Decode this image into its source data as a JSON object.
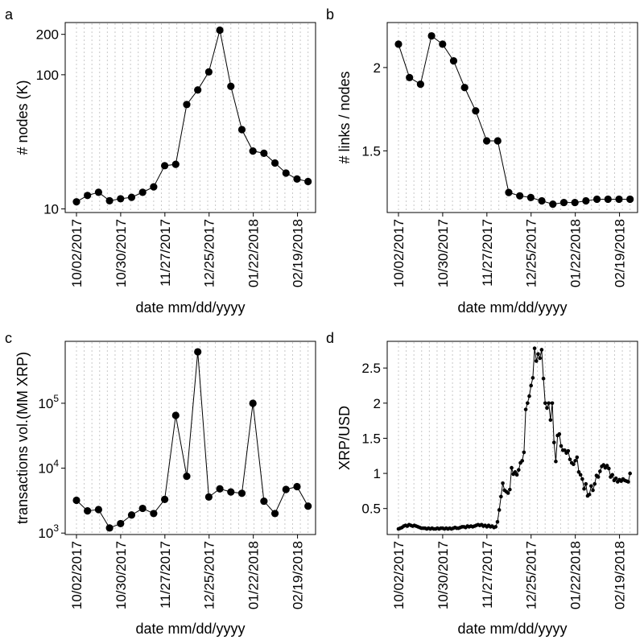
{
  "chart_data": [
    {
      "letter": "a",
      "type": "line",
      "title": "",
      "xlabel": "date mm/dd/yyyy",
      "ylabel": "# nodes (K)",
      "yscale": "log",
      "ylim": [
        9.4,
        245
      ],
      "yticks": [
        10,
        100,
        200
      ],
      "ytick_labels": [
        "10",
        "100",
        "200"
      ],
      "xtick_labels": [
        "10/02/2017",
        "10/30/2017",
        "11/27/2017",
        "12/25/2017",
        "01/22/2018",
        "02/19/2018"
      ],
      "marker": "large",
      "values": [
        11.3,
        12.6,
        13.3,
        11.5,
        11.9,
        12.2,
        13.3,
        14.6,
        21,
        21.5,
        60,
        77,
        105,
        215,
        82,
        39,
        27,
        26,
        22,
        18.5,
        16.7,
        16
      ]
    },
    {
      "letter": "b",
      "type": "line",
      "title": "",
      "xlabel": "date mm/dd/yyyy",
      "ylabel": "# links / nodes",
      "yscale": "linear",
      "ylim": [
        1.13,
        2.27
      ],
      "yticks": [
        1.5,
        2
      ],
      "ytick_labels": [
        "1.5",
        "2"
      ],
      "xtick_labels": [
        "10/02/2017",
        "10/30/2017",
        "11/27/2017",
        "12/25/2017",
        "01/22/2018",
        "02/19/2018"
      ],
      "marker": "large",
      "values": [
        2.14,
        1.94,
        1.9,
        2.19,
        2.14,
        2.04,
        1.88,
        1.74,
        1.56,
        1.56,
        1.25,
        1.23,
        1.22,
        1.2,
        1.18,
        1.19,
        1.19,
        1.2,
        1.21,
        1.21,
        1.21,
        1.21
      ]
    },
    {
      "letter": "c",
      "type": "line",
      "title": "",
      "xlabel": "date mm/dd/yyyy",
      "ylabel": "transactions vol.(MM XRP)",
      "yscale": "log",
      "ylim": [
        950,
        900000
      ],
      "yticks": [
        1000,
        10000,
        100000
      ],
      "ytick_labels": [
        {
          "base": "10",
          "exp": "3"
        },
        {
          "base": "10",
          "exp": "4"
        },
        {
          "base": "10",
          "exp": "5"
        }
      ],
      "xtick_labels": [
        "10/02/2017",
        "10/30/2017",
        "11/27/2017",
        "12/25/2017",
        "01/22/2018",
        "02/19/2018"
      ],
      "marker": "large",
      "values": [
        3200,
        2200,
        2300,
        1200,
        1400,
        1900,
        2400,
        2000,
        3300,
        65000,
        7500,
        620000,
        3600,
        4800,
        4300,
        4100,
        100000,
        3100,
        2000,
        4700,
        5200,
        2600
      ]
    },
    {
      "letter": "d",
      "type": "line",
      "title": "",
      "xlabel": "date mm/dd/yyyy",
      "ylabel": "XRP/USD",
      "yscale": "linear",
      "ylim": [
        0.13,
        2.88
      ],
      "yticks": [
        0.5,
        1,
        1.5,
        2,
        2.5
      ],
      "ytick_labels": [
        "0.5",
        "1",
        "1.5",
        "2",
        "2.5"
      ],
      "xtick_labels": [
        "10/02/2017",
        "10/30/2017",
        "11/27/2017",
        "12/25/2017",
        "01/22/2018",
        "02/19/2018"
      ],
      "marker": "small",
      "values": [
        0.21,
        0.22,
        0.23,
        0.25,
        0.26,
        0.25,
        0.27,
        0.26,
        0.25,
        0.26,
        0.25,
        0.24,
        0.23,
        0.22,
        0.22,
        0.22,
        0.21,
        0.22,
        0.21,
        0.22,
        0.21,
        0.21,
        0.22,
        0.21,
        0.22,
        0.22,
        0.21,
        0.22,
        0.21,
        0.22,
        0.21,
        0.22,
        0.23,
        0.22,
        0.22,
        0.23,
        0.24,
        0.24,
        0.23,
        0.25,
        0.24,
        0.25,
        0.24,
        0.25,
        0.26,
        0.27,
        0.26,
        0.27,
        0.25,
        0.26,
        0.24,
        0.26,
        0.24,
        0.25,
        0.23,
        0.24,
        0.31,
        0.48,
        0.67,
        0.86,
        0.76,
        0.74,
        0.72,
        0.77,
        1.08,
        0.99,
        1.02,
        0.98,
        1.05,
        1.15,
        1.18,
        1.3,
        1.91,
        2.0,
        2.1,
        2.25,
        2.36,
        2.78,
        2.6,
        2.7,
        2.64,
        2.76,
        2.35,
        2.0,
        1.93,
        2.0,
        1.76,
        2.0,
        1.44,
        1.17,
        1.54,
        1.56,
        1.39,
        1.33,
        1.33,
        1.29,
        1.32,
        1.2,
        1.15,
        1.13,
        1.18,
        1.23,
        1.02,
        0.98,
        0.92,
        0.78,
        0.85,
        0.68,
        0.7,
        0.82,
        0.76,
        0.85,
        0.97,
        0.95,
        1.03,
        1.1,
        1.12,
        1.08,
        1.11,
        1.07,
        0.95,
        0.98,
        0.9,
        0.93,
        0.88,
        0.91,
        0.89,
        0.92,
        0.9,
        0.89,
        0.88,
        1.0
      ]
    }
  ]
}
